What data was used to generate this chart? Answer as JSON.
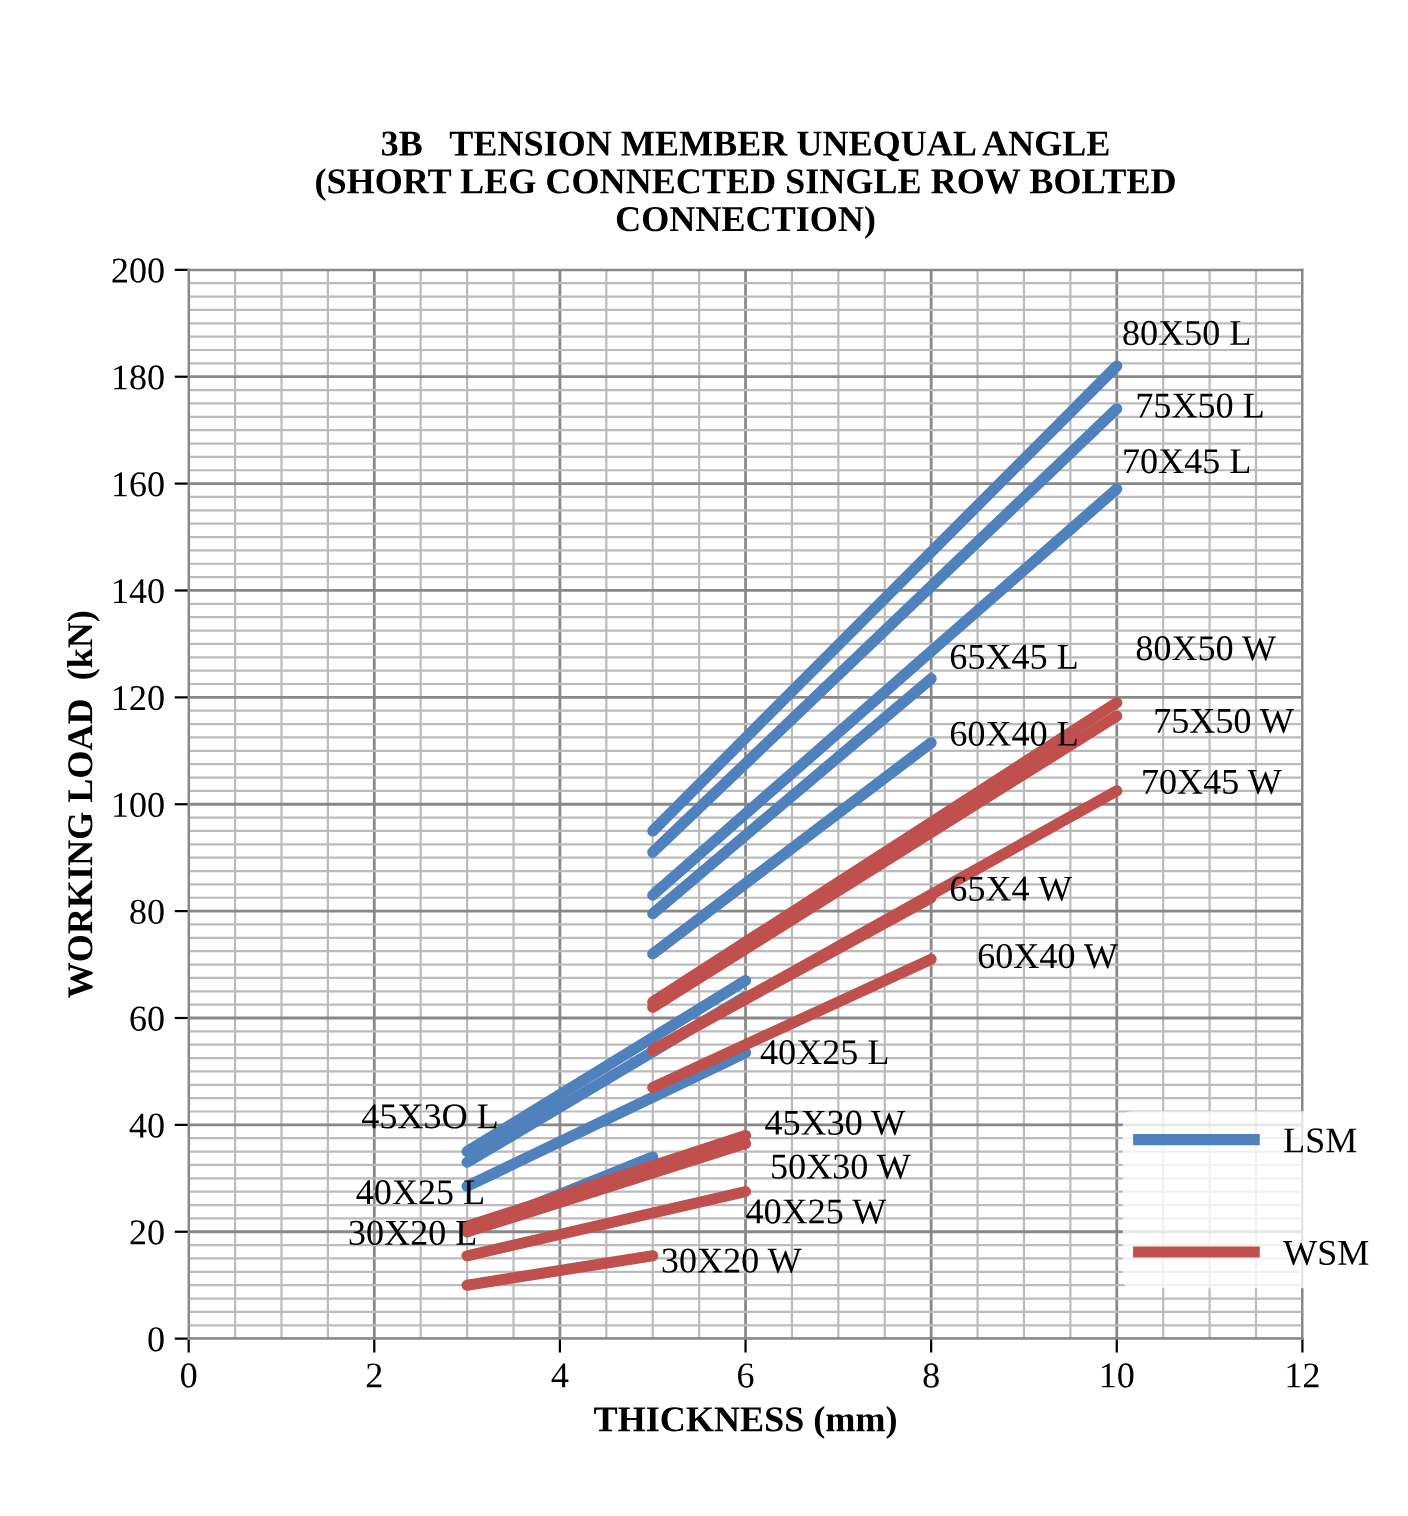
{
  "chart_data": {
    "type": "line",
    "title": "3B   TENSION MEMBER UNEQUAL ANGLE\n(SHORT LEG CONNECTED SINGLE ROW BOLTED\nCONNECTION)",
    "xlabel": "THICKNESS (mm)",
    "ylabel": "WORKING LOAD  (kN)",
    "series": [
      {
        "name": "LSM",
        "color": "#4f81bd",
        "x": [
          5,
          10
        ],
        "values": [
          95,
          182
        ]
      },
      {
        "color": "#4f81bd",
        "x": [
          5,
          10
        ],
        "values": [
          91,
          174
        ]
      },
      {
        "color": "#4f81bd",
        "x": [
          5,
          10
        ],
        "values": [
          83,
          159
        ]
      },
      {
        "color": "#4f81bd",
        "x": [
          5,
          8
        ],
        "values": [
          79.5,
          123.5
        ]
      },
      {
        "color": "#4f81bd",
        "x": [
          5,
          8
        ],
        "values": [
          72,
          111.5
        ]
      },
      {
        "color": "#4f81bd",
        "x": [
          3,
          6
        ],
        "values": [
          35,
          67
        ]
      },
      {
        "color": "#4f81bd",
        "x": [
          3,
          6
        ],
        "values": [
          33,
          64
        ]
      },
      {
        "color": "#4f81bd",
        "x": [
          3,
          6
        ],
        "values": [
          28.5,
          53.5
        ]
      },
      {
        "color": "#4f81bd",
        "x": [
          3,
          5
        ],
        "values": [
          20,
          34
        ]
      },
      {
        "name": "WSM",
        "color": "#c0504d",
        "x": [
          5,
          10
        ],
        "values": [
          63,
          119
        ]
      },
      {
        "color": "#c0504d",
        "x": [
          5,
          10
        ],
        "values": [
          62,
          116.5
        ]
      },
      {
        "color": "#c0504d",
        "x": [
          5,
          10
        ],
        "values": [
          54,
          102.5
        ]
      },
      {
        "color": "#c0504d",
        "x": [
          5,
          8
        ],
        "values": [
          54,
          82.5
        ]
      },
      {
        "color": "#c0504d",
        "x": [
          5,
          8
        ],
        "values": [
          47,
          71
        ]
      },
      {
        "color": "#c0504d",
        "x": [
          3,
          6
        ],
        "values": [
          21,
          38
        ]
      },
      {
        "color": "#c0504d",
        "x": [
          3,
          6
        ],
        "values": [
          20,
          36.5
        ]
      },
      {
        "color": "#c0504d",
        "x": [
          3,
          6
        ],
        "values": [
          15.5,
          27.5
        ]
      },
      {
        "color": "#c0504d",
        "x": [
          3,
          5
        ],
        "values": [
          10,
          15.5
        ]
      }
    ],
    "annotations": [
      "80X50 L",
      "75X50 L",
      "70X45 L",
      "65X45 L",
      "80X50 W",
      "60X40 L",
      "75X50 W",
      "70X45 W",
      "65X4 W",
      "60X40 W",
      "40X25 L",
      "45X3O L",
      "45X30 W",
      "40X25 L",
      "50X30 W",
      "30X20 L",
      "40X25 W",
      "30X20 W"
    ],
    "xlim": [
      0,
      12
    ],
    "xticks": [
      0,
      2,
      4,
      6,
      8,
      10,
      12
    ],
    "ylim": [
      0,
      200
    ],
    "yticks": [
      0,
      20,
      40,
      60,
      80,
      100,
      120,
      140,
      160,
      180,
      200
    ],
    "grid": true,
    "legend": "right",
    "marker": "none",
    "line_style": "solid"
  }
}
